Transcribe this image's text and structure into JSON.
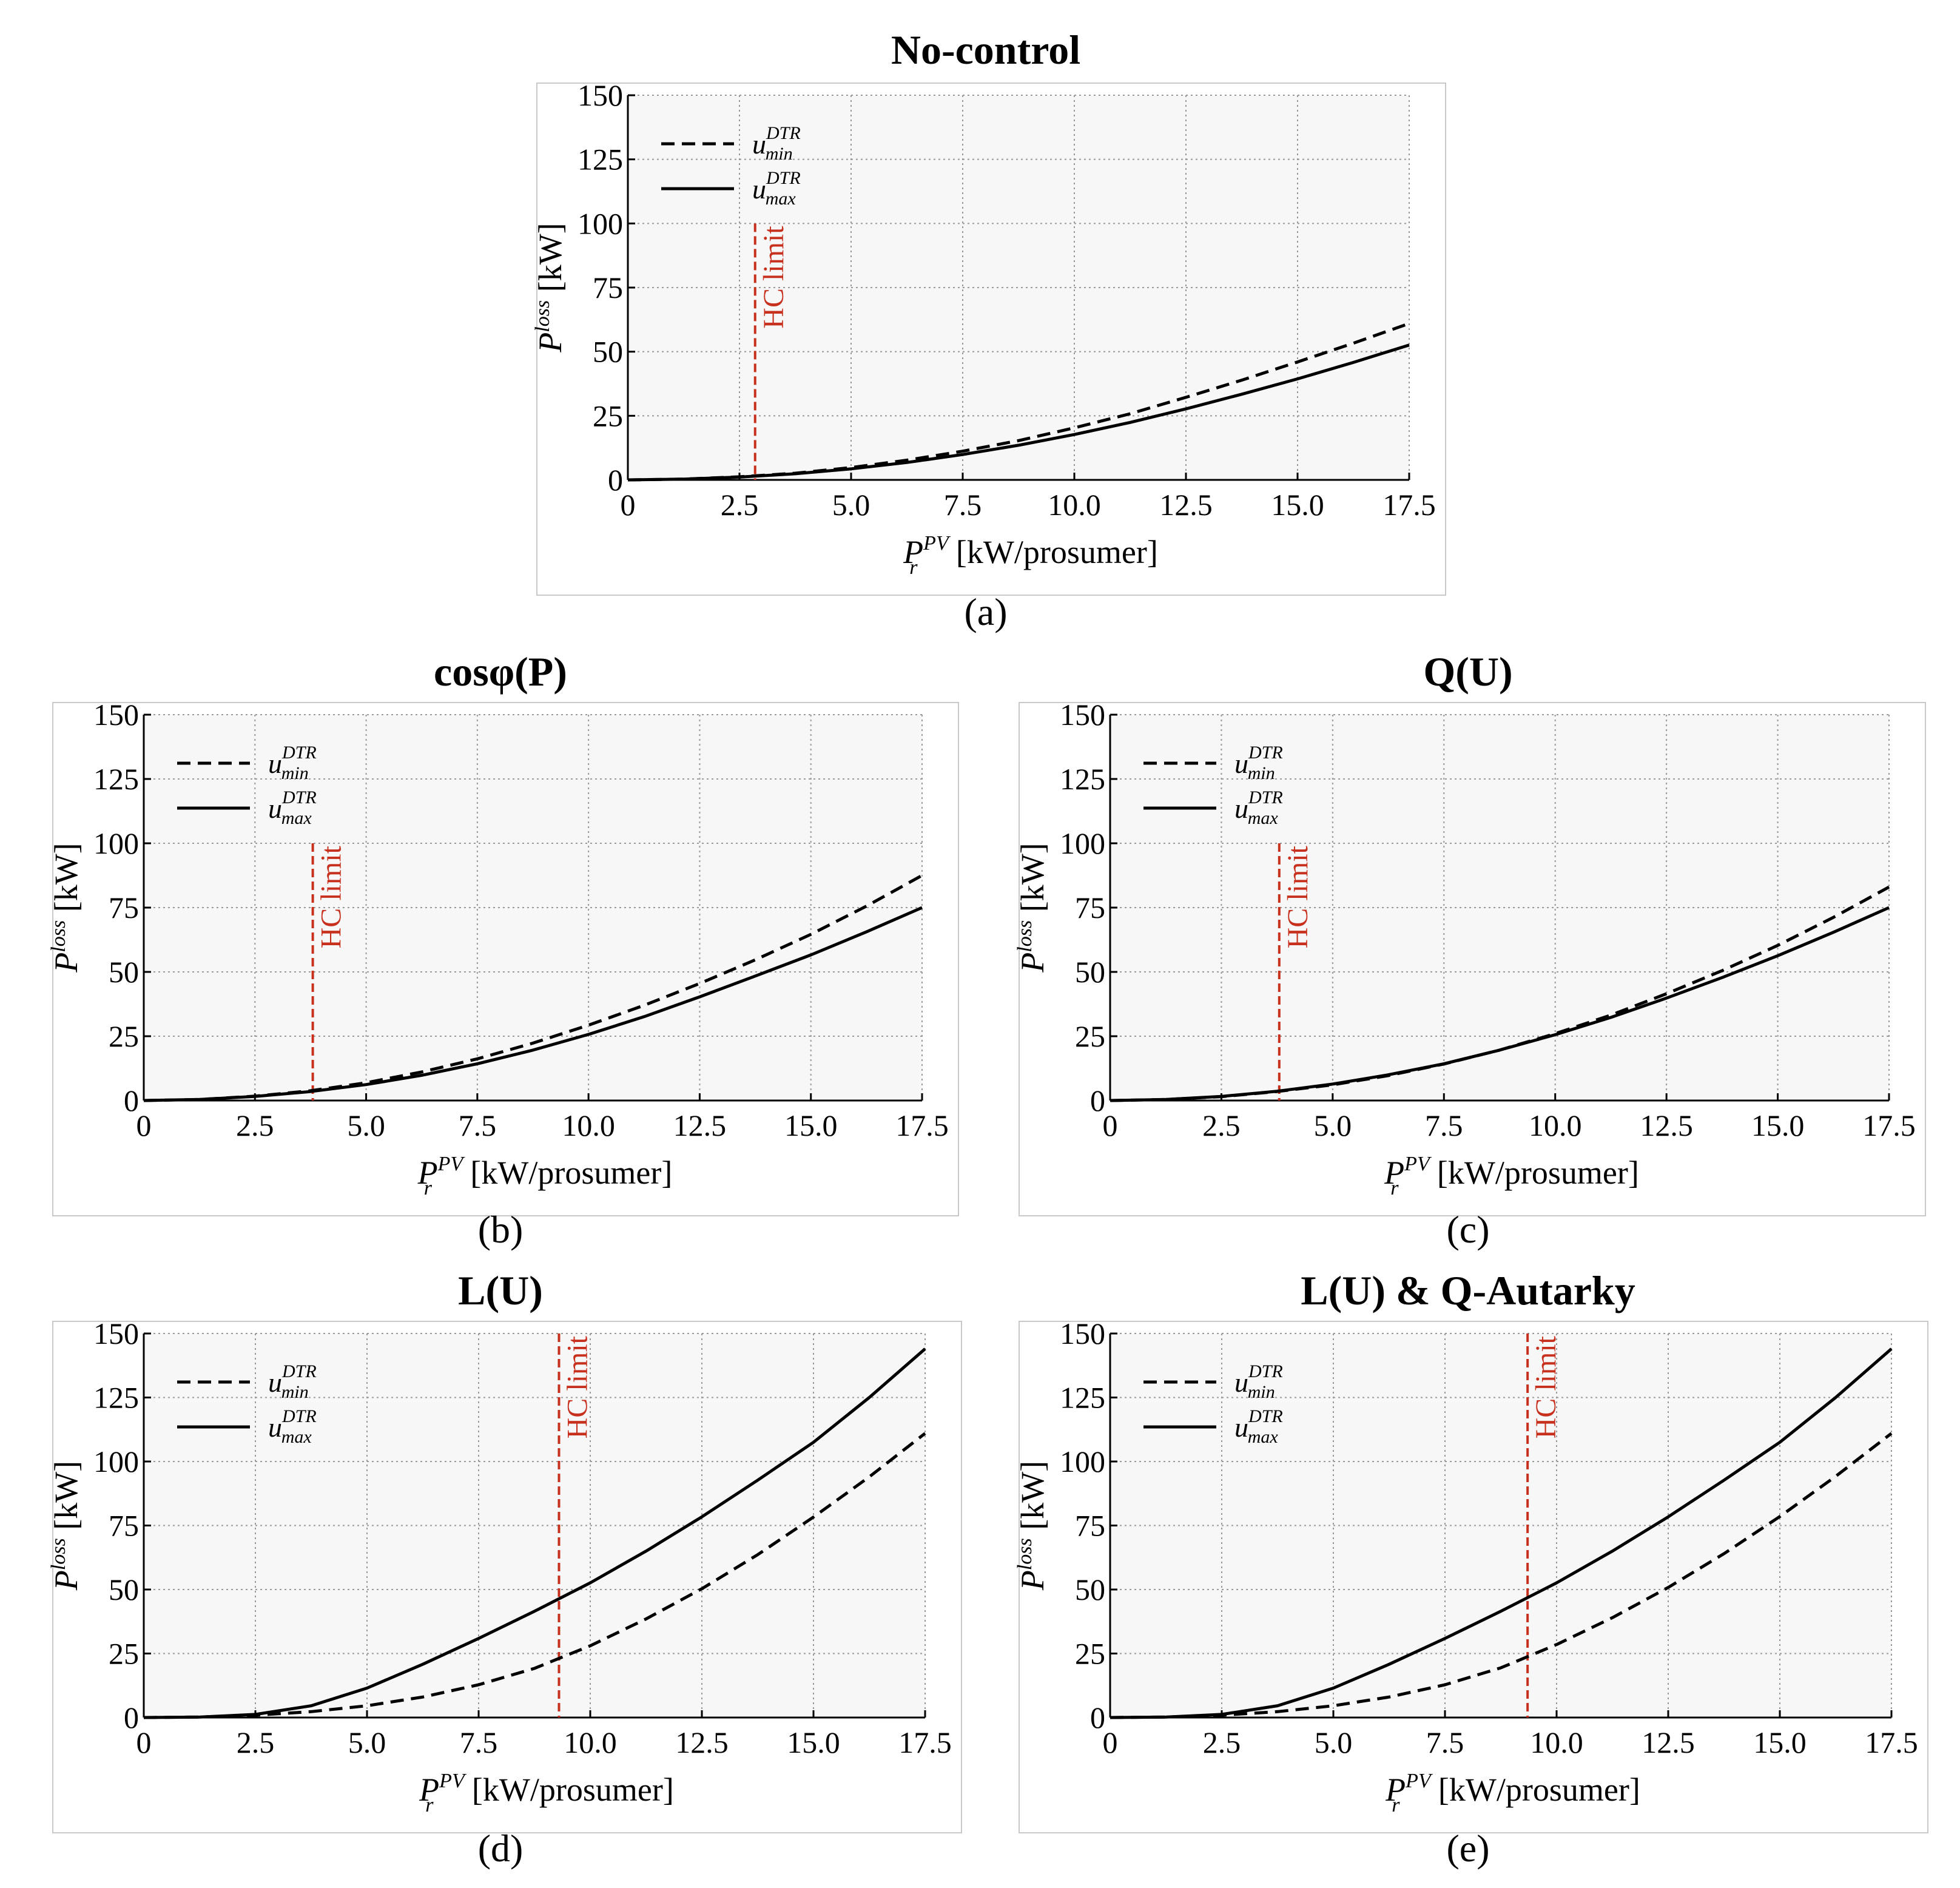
{
  "figure": {
    "hc_label": "HC limit",
    "legend": [
      {
        "base": "u",
        "sup": "DTR",
        "sub": "min",
        "style": "dashed"
      },
      {
        "base": "u",
        "sup": "DTR",
        "sub": "max",
        "style": "solid"
      }
    ],
    "colors": {
      "curve": "#000000",
      "hc_line": "#c8301e",
      "grid": "#9a9a9a"
    }
  },
  "chart_data": [
    {
      "id": "a",
      "type": "line",
      "title": "No-control",
      "panel_label": "(a)",
      "xlabel": {
        "base": "P",
        "sup": "PV",
        "sub": "r",
        "unit": "[kW/prosumer]"
      },
      "ylabel": {
        "base": "P",
        "sup": "loss",
        "unit": "[kW]"
      },
      "xlim": [
        0,
        17.5
      ],
      "ylim": [
        0,
        150
      ],
      "xticks": [
        "0",
        "2.5",
        "5.0",
        "7.5",
        "10.0",
        "12.5",
        "15.0",
        "17.5"
      ],
      "xtick_values": [
        0,
        2.5,
        5,
        7.5,
        10,
        12.5,
        15,
        17.5
      ],
      "yticks": [
        "0",
        "25",
        "50",
        "75",
        "100",
        "125",
        "150"
      ],
      "ytick_values": [
        0,
        25,
        50,
        75,
        100,
        125,
        150
      ],
      "hc_limit_x": 2.85,
      "hc_line_top": 100,
      "series": [
        {
          "name": "u_min^DTR",
          "style": "dashed",
          "x": [
            0,
            1.25,
            2.5,
            3.75,
            5,
            6.25,
            7.5,
            8.75,
            10,
            11.25,
            12.5,
            13.75,
            15,
            16.25,
            17.5
          ],
          "y": [
            0,
            0.3,
            1.2,
            2.6,
            4.8,
            7.7,
            11.2,
            15.3,
            20.3,
            25.8,
            32.2,
            38.9,
            46.0,
            53.3,
            61.0
          ]
        },
        {
          "name": "u_max^DTR",
          "style": "solid",
          "x": [
            0,
            1.25,
            2.5,
            3.75,
            5,
            6.25,
            7.5,
            8.75,
            10,
            11.25,
            12.5,
            13.75,
            15,
            16.25,
            17.5
          ],
          "y": [
            0,
            0.3,
            1.1,
            2.4,
            4.3,
            6.8,
            9.9,
            13.5,
            17.7,
            22.4,
            27.7,
            33.4,
            39.4,
            45.8,
            52.6
          ]
        }
      ]
    },
    {
      "id": "b",
      "type": "line",
      "title": "cosφ(P)",
      "panel_label": "(b)",
      "xlabel": {
        "base": "P",
        "sup": "PV",
        "sub": "r",
        "unit": "[kW/prosumer]"
      },
      "ylabel": {
        "base": "P",
        "sup": "loss",
        "unit": "[kW]"
      },
      "xlim": [
        0,
        17.5
      ],
      "ylim": [
        0,
        150
      ],
      "xticks": [
        "0",
        "2.5",
        "5.0",
        "7.5",
        "10.0",
        "12.5",
        "15.0",
        "17.5"
      ],
      "xtick_values": [
        0,
        2.5,
        5,
        7.5,
        10,
        12.5,
        15,
        17.5
      ],
      "yticks": [
        "0",
        "25",
        "50",
        "75",
        "100",
        "125",
        "150"
      ],
      "ytick_values": [
        0,
        25,
        50,
        75,
        100,
        125,
        150
      ],
      "hc_limit_x": 3.8,
      "hc_line_top": 100,
      "series": [
        {
          "name": "u_min^DTR",
          "style": "dashed",
          "x": [
            0,
            1.25,
            2.5,
            3.75,
            5,
            6.25,
            7.5,
            8.75,
            10,
            11.25,
            12.5,
            13.75,
            15,
            16.25,
            17.5
          ],
          "y": [
            0,
            0.4,
            1.7,
            3.8,
            6.9,
            11.1,
            16.2,
            22.3,
            29.3,
            37.0,
            45.5,
            54.7,
            64.6,
            75.6,
            87.5
          ]
        },
        {
          "name": "u_max^DTR",
          "style": "solid",
          "x": [
            0,
            1.25,
            2.5,
            3.75,
            5,
            6.25,
            7.5,
            8.75,
            10,
            11.25,
            12.5,
            13.75,
            15,
            16.25,
            17.5
          ],
          "y": [
            0,
            0.4,
            1.6,
            3.5,
            6.2,
            9.8,
            14.3,
            19.6,
            25.7,
            32.6,
            40.3,
            48.4,
            56.6,
            65.6,
            75.0
          ]
        }
      ]
    },
    {
      "id": "c",
      "type": "line",
      "title": "Q(U)",
      "panel_label": "(c)",
      "xlabel": {
        "base": "P",
        "sup": "PV",
        "sub": "r",
        "unit": "[kW/prosumer]"
      },
      "ylabel": {
        "base": "P",
        "sup": "loss",
        "unit": "[kW]"
      },
      "xlim": [
        0,
        17.5
      ],
      "ylim": [
        0,
        150
      ],
      "xticks": [
        "0",
        "2.5",
        "5.0",
        "7.5",
        "10.0",
        "12.5",
        "15.0",
        "17.5"
      ],
      "xtick_values": [
        0,
        2.5,
        5,
        7.5,
        10,
        12.5,
        15,
        17.5
      ],
      "yticks": [
        "0",
        "25",
        "50",
        "75",
        "100",
        "125",
        "150"
      ],
      "ytick_values": [
        0,
        25,
        50,
        75,
        100,
        125,
        150
      ],
      "hc_limit_x": 3.8,
      "hc_line_top": 100,
      "series": [
        {
          "name": "u_min^DTR",
          "style": "dashed",
          "x": [
            0,
            1.25,
            2.5,
            3.75,
            5,
            6.25,
            7.5,
            8.75,
            10,
            11.25,
            12.5,
            13.75,
            15,
            16.25,
            17.5
          ],
          "y": [
            0,
            0.4,
            1.5,
            3.5,
            6.1,
            9.7,
            14.2,
            19.6,
            26.0,
            33.2,
            41.5,
            50.5,
            60.3,
            71.2,
            83.0
          ]
        },
        {
          "name": "u_max^DTR",
          "style": "solid",
          "x": [
            0,
            1.25,
            2.5,
            3.75,
            5,
            6.25,
            7.5,
            8.75,
            10,
            11.25,
            12.5,
            13.75,
            15,
            16.25,
            17.5
          ],
          "y": [
            0,
            0.4,
            1.6,
            3.6,
            6.4,
            10.0,
            14.3,
            19.6,
            25.6,
            32.3,
            39.8,
            47.8,
            56.3,
            65.4,
            75.0
          ]
        }
      ]
    },
    {
      "id": "d",
      "type": "line",
      "title": "L(U)",
      "panel_label": "(d)",
      "xlabel": {
        "base": "P",
        "sup": "PV",
        "sub": "r",
        "unit": "[kW/prosumer]"
      },
      "ylabel": {
        "base": "P",
        "sup": "loss",
        "unit": "[kW]"
      },
      "xlim": [
        0,
        17.5
      ],
      "ylim": [
        0,
        150
      ],
      "xticks": [
        "0",
        "2.5",
        "5.0",
        "7.5",
        "10.0",
        "12.5",
        "15.0",
        "17.5"
      ],
      "xtick_values": [
        0,
        2.5,
        5,
        7.5,
        10,
        12.5,
        15,
        17.5
      ],
      "yticks": [
        "0",
        "25",
        "50",
        "75",
        "100",
        "125",
        "150"
      ],
      "ytick_values": [
        0,
        25,
        50,
        75,
        100,
        125,
        150
      ],
      "hc_limit_x": 9.3,
      "hc_line_top": 150,
      "series": [
        {
          "name": "u_min^DTR",
          "style": "dashed",
          "x": [
            0,
            1.25,
            2.5,
            3.75,
            5,
            6.25,
            7.5,
            8.75,
            10,
            11.25,
            12.5,
            13.75,
            15,
            16.25,
            17.5
          ],
          "y": [
            0,
            0.2,
            0.9,
            2.3,
            4.6,
            8.0,
            12.8,
            19.2,
            28.0,
            38.5,
            50.3,
            63.6,
            78.3,
            94.0,
            111.0
          ]
        },
        {
          "name": "u_max^DTR",
          "style": "solid",
          "x": [
            0,
            1.25,
            2.5,
            3.75,
            5,
            6.25,
            7.5,
            8.75,
            10,
            11.25,
            12.5,
            13.75,
            15,
            16.25,
            17.5
          ],
          "y": [
            0,
            0.2,
            1.2,
            4.6,
            11.5,
            20.8,
            30.9,
            41.5,
            52.6,
            65.0,
            78.4,
            92.7,
            107.5,
            125.0,
            144.0
          ]
        }
      ]
    },
    {
      "id": "e",
      "type": "line",
      "title": "L(U) & Q-Autarky",
      "panel_label": "(e)",
      "xlabel": {
        "base": "P",
        "sup": "PV",
        "sub": "r",
        "unit": "[kW/prosumer]"
      },
      "ylabel": {
        "base": "P",
        "sup": "loss",
        "unit": "[kW]"
      },
      "xlim": [
        0,
        17.5
      ],
      "ylim": [
        0,
        150
      ],
      "xticks": [
        "0",
        "2.5",
        "5.0",
        "7.5",
        "10.0",
        "12.5",
        "15.0",
        "17.5"
      ],
      "xtick_values": [
        0,
        2.5,
        5,
        7.5,
        10,
        12.5,
        15,
        17.5
      ],
      "yticks": [
        "0",
        "25",
        "50",
        "75",
        "100",
        "125",
        "150"
      ],
      "ytick_values": [
        0,
        25,
        50,
        75,
        100,
        125,
        150
      ],
      "hc_limit_x": 9.35,
      "hc_line_top": 150,
      "series": [
        {
          "name": "u_min^DTR",
          "style": "dashed",
          "x": [
            0,
            1.25,
            2.5,
            3.75,
            5,
            6.25,
            7.5,
            8.75,
            10,
            11.25,
            12.5,
            13.75,
            15,
            16.25,
            17.5
          ],
          "y": [
            0,
            0.2,
            0.9,
            2.3,
            4.6,
            8.0,
            12.8,
            19.4,
            28.5,
            39.0,
            50.8,
            64.0,
            78.5,
            94.2,
            111.0
          ]
        },
        {
          "name": "u_max^DTR",
          "style": "solid",
          "x": [
            0,
            1.25,
            2.5,
            3.75,
            5,
            6.25,
            7.5,
            8.75,
            10,
            11.25,
            12.5,
            13.75,
            15,
            16.25,
            17.5
          ],
          "y": [
            0,
            0.2,
            1.2,
            4.6,
            11.5,
            20.8,
            30.9,
            41.5,
            52.6,
            65.0,
            78.4,
            92.7,
            107.5,
            125.0,
            144.0
          ]
        }
      ]
    }
  ]
}
